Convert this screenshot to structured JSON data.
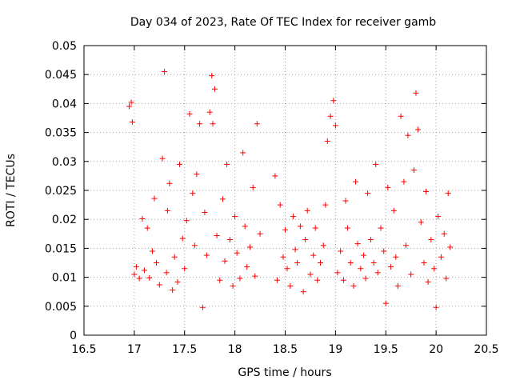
{
  "chart_data": {
    "type": "scatter",
    "title": "Day 034 of 2023, Rate Of TEC Index for receiver gamb",
    "xlabel": "GPS time / hours",
    "ylabel": "ROTI / TECUs",
    "xlim": [
      16.5,
      20.5
    ],
    "ylim": [
      0,
      0.05
    ],
    "xticks": [
      16.5,
      17,
      17.5,
      18,
      18.5,
      19,
      19.5,
      20,
      20.5
    ],
    "xtick_labels": [
      "16.5",
      "17",
      "17.5",
      "18",
      "18.5",
      "19",
      "19.5",
      "20",
      "20.5"
    ],
    "yticks": [
      0,
      0.005,
      0.01,
      0.015,
      0.02,
      0.025,
      0.03,
      0.035,
      0.04,
      0.045,
      0.05
    ],
    "ytick_labels": [
      "0",
      "0.005",
      "0.01",
      "0.015",
      "0.02",
      "0.025",
      "0.03",
      "0.035",
      "0.04",
      "0.045",
      "0.05"
    ],
    "grid": true,
    "marker": "+",
    "color": "#ff0000",
    "series": [
      {
        "name": "ROTI",
        "x": [
          16.95,
          16.97,
          16.98,
          17.0,
          17.02,
          17.05,
          17.08,
          17.1,
          17.13,
          17.15,
          17.18,
          17.2,
          17.22,
          17.25,
          17.28,
          17.3,
          17.32,
          17.33,
          17.35,
          17.38,
          17.4,
          17.43,
          17.45,
          17.48,
          17.5,
          17.52,
          17.55,
          17.58,
          17.6,
          17.62,
          17.65,
          17.68,
          17.7,
          17.72,
          17.75,
          17.77,
          17.78,
          17.8,
          17.82,
          17.85,
          17.88,
          17.9,
          17.92,
          17.95,
          17.98,
          18.0,
          18.02,
          18.05,
          18.08,
          18.1,
          18.12,
          18.15,
          18.18,
          18.2,
          18.22,
          18.25,
          18.4,
          18.42,
          18.45,
          18.48,
          18.5,
          18.52,
          18.55,
          18.58,
          18.6,
          18.62,
          18.65,
          18.68,
          18.7,
          18.72,
          18.75,
          18.78,
          18.8,
          18.82,
          18.85,
          18.88,
          18.9,
          18.92,
          18.95,
          18.98,
          19.0,
          19.02,
          19.05,
          19.08,
          19.1,
          19.12,
          19.15,
          19.18,
          19.2,
          19.22,
          19.25,
          19.28,
          19.3,
          19.32,
          19.35,
          19.38,
          19.4,
          19.42,
          19.45,
          19.48,
          19.5,
          19.52,
          19.55,
          19.58,
          19.6,
          19.62,
          19.65,
          19.68,
          19.7,
          19.72,
          19.75,
          19.78,
          19.8,
          19.82,
          19.85,
          19.88,
          19.9,
          19.92,
          19.95,
          19.98,
          20.0,
          20.02,
          20.05,
          20.08,
          20.1,
          20.12,
          20.14
        ],
        "y": [
          0.0395,
          0.0402,
          0.0368,
          0.0105,
          0.0118,
          0.0098,
          0.0201,
          0.0112,
          0.0185,
          0.0099,
          0.0145,
          0.0236,
          0.0125,
          0.0087,
          0.0305,
          0.0455,
          0.0108,
          0.0215,
          0.0262,
          0.0078,
          0.0135,
          0.0092,
          0.0295,
          0.0167,
          0.0115,
          0.0198,
          0.0382,
          0.0245,
          0.0155,
          0.0278,
          0.0365,
          0.0048,
          0.0212,
          0.0138,
          0.0385,
          0.0448,
          0.0365,
          0.0425,
          0.0172,
          0.0095,
          0.0235,
          0.0128,
          0.0295,
          0.0165,
          0.0085,
          0.0205,
          0.0142,
          0.0098,
          0.0315,
          0.0188,
          0.0118,
          0.0152,
          0.0255,
          0.0102,
          0.0365,
          0.0175,
          0.0275,
          0.0095,
          0.0225,
          0.0135,
          0.0182,
          0.0115,
          0.0085,
          0.0205,
          0.0148,
          0.0125,
          0.0188,
          0.0075,
          0.0165,
          0.0215,
          0.0105,
          0.0138,
          0.0185,
          0.0095,
          0.0125,
          0.0155,
          0.0225,
          0.0335,
          0.0378,
          0.0405,
          0.0362,
          0.0108,
          0.0145,
          0.0095,
          0.0232,
          0.0185,
          0.0125,
          0.0085,
          0.0265,
          0.0158,
          0.0115,
          0.0138,
          0.0098,
          0.0245,
          0.0165,
          0.0125,
          0.0295,
          0.0108,
          0.0185,
          0.0145,
          0.0055,
          0.0255,
          0.0118,
          0.0215,
          0.0135,
          0.0085,
          0.0378,
          0.0265,
          0.0155,
          0.0345,
          0.0105,
          0.0285,
          0.0418,
          0.0355,
          0.0195,
          0.0125,
          0.0248,
          0.0092,
          0.0165,
          0.0115,
          0.0048,
          0.0205,
          0.0135,
          0.0175,
          0.0098,
          0.0245,
          0.0152
        ]
      }
    ]
  }
}
